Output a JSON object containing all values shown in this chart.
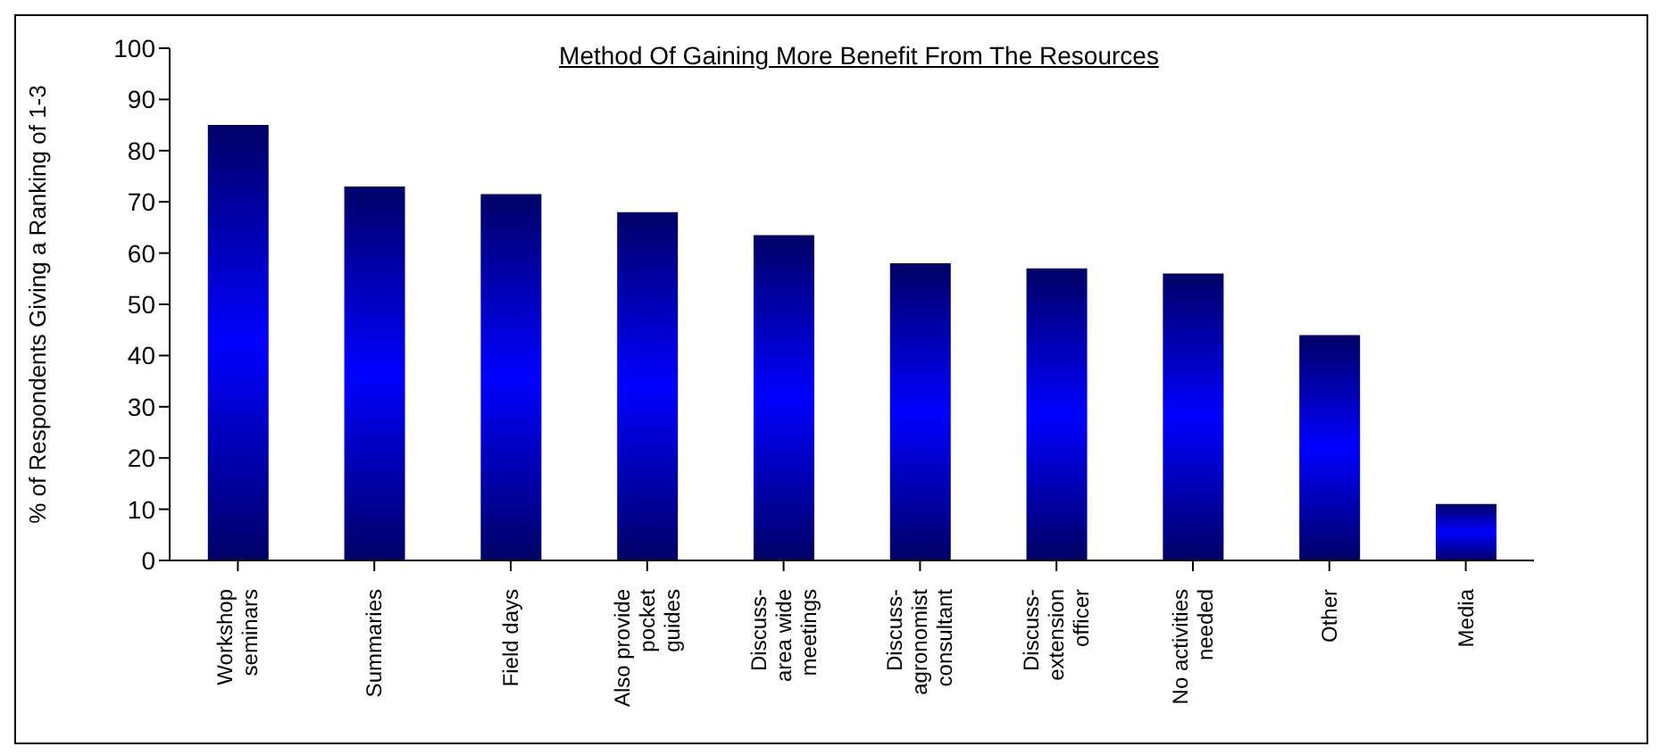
{
  "chart_data": {
    "type": "bar",
    "title": "Method Of Gaining More Benefit From The Resources",
    "ylabel": "% of Respondents Giving a Ranking of 1-3",
    "categories": [
      "Workshop\nseminars",
      "Summaries",
      "Field days",
      "Also provide\npocket\nguides",
      "Discuss-\narea wide\nmeetings",
      "Discuss-\nagronomist\nconsultant",
      "Discuss-\nextension\nofficer",
      "No activities\nneeded",
      "Other",
      "Media"
    ],
    "values": [
      85,
      73,
      71.5,
      68,
      63.5,
      58,
      57,
      56,
      44,
      11
    ],
    "color": "#0000ff",
    "ylim": [
      0,
      100
    ],
    "yticks": [
      0,
      10,
      20,
      30,
      40,
      50,
      60,
      70,
      80,
      90,
      100
    ],
    "grid": false
  }
}
